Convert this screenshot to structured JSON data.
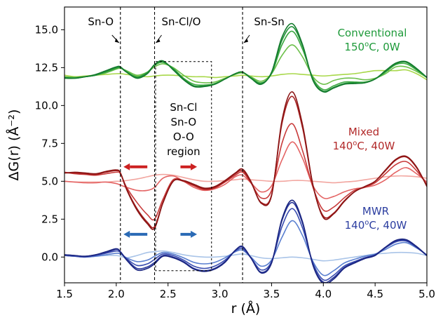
{
  "chart_data": {
    "type": "line",
    "xlabel": "r (Å)",
    "ylabel": "ΔG(r) (Å⁻²)",
    "xlim": [
      1.5,
      5.0
    ],
    "ylim": [
      -1.7,
      16.5
    ],
    "xticks": [
      "1.5",
      "2.0",
      "2.5",
      "3.0",
      "3.5",
      "4.0",
      "4.5",
      "5.0"
    ],
    "yticks": [
      "0.0",
      "2.5",
      "5.0",
      "7.5",
      "10.0",
      "12.5",
      "15.0"
    ],
    "grid": false,
    "vlines": [
      {
        "x": 2.04,
        "label": "Sn-O"
      },
      {
        "x": 2.37,
        "label": "Sn-Cl/O"
      },
      {
        "x": 3.22,
        "label": "Sn-Sn"
      }
    ],
    "region": {
      "x": [
        2.38,
        2.92
      ],
      "y": [
        -0.9,
        12.9
      ],
      "label": [
        "Sn-Cl",
        "Sn-O",
        "O-O",
        "region"
      ]
    },
    "group_labels": [
      {
        "line1": "Conventional",
        "line2_main": "150",
        "line2_sup": "o",
        "line2_rest": "C, 0W",
        "color": "#1e9a3a"
      },
      {
        "line1": "Mixed",
        "line2_main": "140",
        "line2_sup": "o",
        "line2_rest": "C, 40W",
        "color": "#b22a2a"
      },
      {
        "line1": "MWR",
        "line2_main": "140",
        "line2_sup": "o",
        "line2_rest": "C, 40W",
        "color": "#2c3ea0"
      }
    ],
    "arrows": [
      {
        "group": "Mixed",
        "x_from": 2.3,
        "x_to": 2.07,
        "y": 5.95,
        "side": "left",
        "color": "#cc2020"
      },
      {
        "group": "Mixed",
        "x_from": 2.62,
        "x_to": 2.78,
        "y": 5.95,
        "side": "right",
        "color": "#cc2020"
      },
      {
        "group": "MWR",
        "x_from": 2.3,
        "x_to": 2.07,
        "y": 1.5,
        "side": "left",
        "color": "#2a6ab5"
      },
      {
        "group": "MWR",
        "x_from": 2.62,
        "x_to": 2.78,
        "y": 1.5,
        "side": "right",
        "color": "#2a6ab5"
      }
    ],
    "x": [
      1.5,
      1.6,
      1.7,
      1.8,
      1.9,
      2.0,
      2.04,
      2.1,
      2.2,
      2.3,
      2.37,
      2.45,
      2.55,
      2.65,
      2.75,
      2.85,
      2.95,
      3.05,
      3.15,
      3.22,
      3.3,
      3.4,
      3.5,
      3.6,
      3.7,
      3.8,
      3.9,
      4.0,
      4.1,
      4.2,
      4.3,
      4.4,
      4.5,
      4.6,
      4.7,
      4.8,
      4.9,
      5.0
    ],
    "series": [
      {
        "group": "Conventional",
        "color": "#a8d84a",
        "values": [
          12.0,
          11.9,
          11.95,
          12.0,
          12.05,
          12.1,
          12.1,
          12.05,
          11.95,
          11.9,
          11.95,
          12.0,
          12.0,
          11.95,
          11.9,
          11.9,
          11.85,
          11.9,
          11.95,
          12.0,
          11.95,
          11.9,
          11.95,
          12.05,
          12.1,
          12.05,
          12.0,
          11.95,
          12.0,
          12.05,
          12.1,
          12.2,
          12.3,
          12.3,
          12.3,
          12.35,
          12.1,
          11.7
        ]
      },
      {
        "group": "Conventional",
        "color": "#6cc04a",
        "values": [
          11.9,
          11.85,
          11.9,
          12.0,
          12.15,
          12.4,
          12.45,
          12.3,
          12.0,
          12.2,
          12.55,
          12.75,
          12.5,
          12.0,
          11.6,
          11.5,
          11.55,
          11.8,
          12.05,
          12.15,
          11.9,
          11.6,
          12.1,
          13.3,
          14.0,
          13.2,
          11.9,
          11.4,
          11.65,
          11.8,
          11.8,
          11.7,
          11.8,
          12.1,
          12.55,
          12.55,
          12.25,
          11.85
        ]
      },
      {
        "group": "Conventional",
        "color": "#3aa840",
        "values": [
          11.85,
          11.85,
          11.9,
          12.0,
          12.2,
          12.45,
          12.5,
          12.25,
          11.9,
          12.2,
          12.65,
          12.85,
          12.45,
          11.8,
          11.4,
          11.35,
          11.45,
          11.75,
          12.1,
          12.2,
          11.85,
          11.5,
          12.1,
          14.0,
          14.9,
          13.7,
          11.8,
          11.05,
          11.3,
          11.55,
          11.55,
          11.55,
          11.75,
          12.2,
          12.7,
          12.75,
          12.35,
          11.85
        ]
      },
      {
        "group": "Conventional",
        "color": "#23923a",
        "values": [
          11.85,
          11.8,
          11.9,
          12.0,
          12.25,
          12.5,
          12.5,
          12.2,
          11.85,
          12.15,
          12.7,
          12.9,
          12.4,
          11.75,
          11.3,
          11.3,
          11.4,
          11.75,
          12.1,
          12.2,
          11.8,
          11.45,
          12.15,
          14.3,
          15.2,
          13.9,
          11.7,
          10.95,
          11.2,
          11.45,
          11.5,
          11.5,
          11.75,
          12.25,
          12.75,
          12.85,
          12.4,
          11.85
        ]
      },
      {
        "group": "Conventional",
        "color": "#147a2e",
        "values": [
          11.8,
          11.8,
          11.9,
          12.05,
          12.3,
          12.55,
          12.55,
          12.2,
          11.8,
          12.1,
          12.7,
          12.95,
          12.35,
          11.7,
          11.25,
          11.25,
          11.4,
          11.75,
          12.1,
          12.2,
          11.8,
          11.4,
          12.2,
          14.5,
          15.4,
          14.0,
          11.65,
          10.9,
          11.15,
          11.4,
          11.45,
          11.5,
          11.75,
          12.3,
          12.8,
          12.9,
          12.45,
          11.85
        ]
      },
      {
        "group": "Mixed",
        "color": "#f2a6a0",
        "values": [
          5.0,
          4.95,
          4.95,
          4.95,
          4.95,
          5.0,
          5.0,
          5.05,
          5.15,
          5.3,
          5.4,
          5.45,
          5.4,
          5.25,
          5.1,
          5.0,
          5.0,
          5.05,
          5.1,
          5.15,
          5.1,
          5.05,
          5.0,
          5.0,
          5.05,
          5.05,
          5.0,
          4.95,
          4.9,
          4.95,
          5.0,
          5.1,
          5.2,
          5.3,
          5.35,
          5.35,
          5.3,
          5.2
        ]
      },
      {
        "group": "Mixed",
        "color": "#e46464",
        "values": [
          5.0,
          4.95,
          4.9,
          4.9,
          4.95,
          4.85,
          4.75,
          4.6,
          4.4,
          4.4,
          4.6,
          5.2,
          5.35,
          5.0,
          4.6,
          4.4,
          4.5,
          4.8,
          5.3,
          5.4,
          4.9,
          4.3,
          4.7,
          6.4,
          7.6,
          6.5,
          4.7,
          3.9,
          4.0,
          4.3,
          4.5,
          4.6,
          4.75,
          5.1,
          5.6,
          5.9,
          5.5,
          4.95
        ]
      },
      {
        "group": "Mixed",
        "color": "#c83a3a",
        "values": [
          5.6,
          5.5,
          5.45,
          5.4,
          5.5,
          5.6,
          5.5,
          4.6,
          3.6,
          2.8,
          2.5,
          3.8,
          5.1,
          5.0,
          4.7,
          4.45,
          4.55,
          4.95,
          5.4,
          5.6,
          4.9,
          3.9,
          4.4,
          7.5,
          8.8,
          7.0,
          4.6,
          3.1,
          3.3,
          3.9,
          4.4,
          4.6,
          4.9,
          5.5,
          6.1,
          6.3,
          5.7,
          4.8
        ]
      },
      {
        "group": "Mixed",
        "color": "#a31e1e",
        "values": [
          5.55,
          5.55,
          5.5,
          5.45,
          5.6,
          5.7,
          5.55,
          4.5,
          3.2,
          2.3,
          2.0,
          3.6,
          5.0,
          5.0,
          4.75,
          4.5,
          4.6,
          5.0,
          5.5,
          5.7,
          4.95,
          3.6,
          4.1,
          8.8,
          10.6,
          8.5,
          4.7,
          2.7,
          2.9,
          3.7,
          4.3,
          4.65,
          5.0,
          5.7,
          6.4,
          6.6,
          5.9,
          4.7
        ]
      },
      {
        "group": "Mixed",
        "color": "#8a1414",
        "values": [
          5.55,
          5.6,
          5.55,
          5.5,
          5.65,
          5.75,
          5.55,
          4.45,
          3.1,
          2.2,
          1.9,
          3.55,
          5.0,
          5.05,
          4.8,
          4.55,
          4.65,
          5.05,
          5.55,
          5.8,
          5.0,
          3.55,
          4.05,
          9.0,
          10.9,
          8.7,
          4.75,
          2.6,
          2.85,
          3.65,
          4.3,
          4.65,
          5.0,
          5.75,
          6.45,
          6.65,
          5.95,
          4.65
        ]
      },
      {
        "group": "MWR",
        "color": "#a9c4e8",
        "values": [
          0.1,
          0.05,
          0.0,
          0.05,
          0.1,
          0.1,
          0.05,
          -0.05,
          0.1,
          0.3,
          0.35,
          0.4,
          0.3,
          0.15,
          0.05,
          0.0,
          0.0,
          0.05,
          0.15,
          0.2,
          0.1,
          -0.05,
          -0.1,
          -0.05,
          0.0,
          -0.05,
          -0.15,
          -0.25,
          -0.2,
          -0.1,
          0.0,
          0.1,
          0.2,
          0.25,
          0.3,
          0.3,
          0.25,
          0.1
        ]
      },
      {
        "group": "MWR",
        "color": "#5a7fd0",
        "values": [
          0.1,
          0.05,
          0.0,
          0.05,
          0.15,
          0.25,
          0.2,
          -0.05,
          -0.3,
          -0.2,
          0.05,
          0.3,
          0.2,
          -0.05,
          -0.35,
          -0.45,
          -0.35,
          -0.05,
          0.35,
          0.45,
          0.0,
          -0.6,
          -0.2,
          1.3,
          2.4,
          1.4,
          -0.3,
          -1.2,
          -0.9,
          -0.4,
          -0.15,
          0.05,
          0.2,
          0.5,
          0.85,
          0.95,
          0.6,
          0.15
        ]
      },
      {
        "group": "MWR",
        "color": "#3a4db0",
        "values": [
          0.1,
          0.05,
          0.0,
          0.1,
          0.25,
          0.4,
          0.3,
          -0.1,
          -0.55,
          -0.45,
          -0.15,
          0.2,
          0.1,
          -0.2,
          -0.6,
          -0.75,
          -0.6,
          -0.2,
          0.4,
          0.55,
          -0.05,
          -0.85,
          -0.3,
          2.0,
          3.2,
          1.9,
          -0.4,
          -1.5,
          -1.2,
          -0.6,
          -0.3,
          -0.05,
          0.15,
          0.6,
          1.0,
          1.05,
          0.65,
          0.1
        ]
      },
      {
        "group": "MWR",
        "color": "#28369a",
        "values": [
          0.15,
          0.1,
          0.05,
          0.15,
          0.3,
          0.5,
          0.35,
          -0.15,
          -0.75,
          -0.65,
          -0.35,
          0.1,
          0.0,
          -0.3,
          -0.75,
          -0.9,
          -0.75,
          -0.3,
          0.45,
          0.65,
          -0.05,
          -1.0,
          -0.35,
          2.4,
          3.6,
          2.2,
          -0.5,
          -1.65,
          -1.35,
          -0.7,
          -0.35,
          -0.05,
          0.15,
          0.65,
          1.05,
          1.1,
          0.65,
          0.1
        ]
      },
      {
        "group": "MWR",
        "color": "#1a2580",
        "values": [
          0.15,
          0.1,
          0.05,
          0.15,
          0.35,
          0.55,
          0.35,
          -0.2,
          -0.85,
          -0.75,
          -0.45,
          0.05,
          -0.05,
          -0.35,
          -0.8,
          -0.95,
          -0.8,
          -0.35,
          0.45,
          0.7,
          -0.05,
          -1.05,
          -0.4,
          2.5,
          3.75,
          2.3,
          -0.55,
          -1.75,
          -1.45,
          -0.75,
          -0.4,
          -0.1,
          0.1,
          0.65,
          1.1,
          1.15,
          0.7,
          0.1
        ]
      }
    ]
  }
}
